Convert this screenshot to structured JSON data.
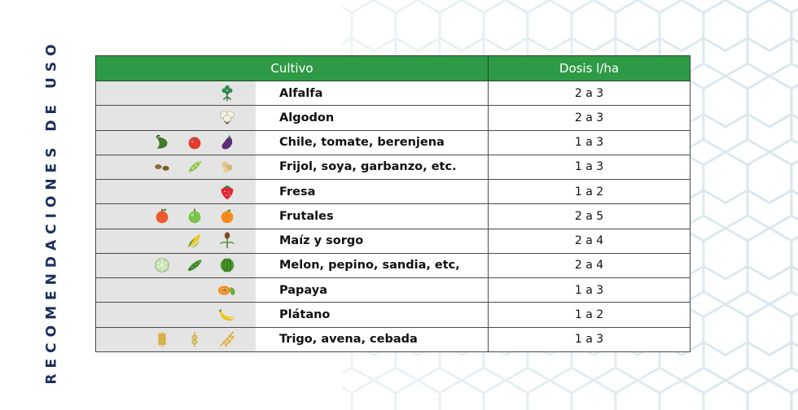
{
  "side_title": "RECOMENDACIONES DE USO",
  "table": {
    "headers": {
      "crop": "Cultivo",
      "dose": "Dosis l/ha"
    },
    "rows": [
      {
        "crop": "Alfalfa",
        "dose": "2 a 3",
        "icons": [
          "alfalfa-icon"
        ]
      },
      {
        "crop": "Algodon",
        "dose": "2 a 3",
        "icons": [
          "cotton-icon"
        ]
      },
      {
        "crop": "Chile, tomate, berenjena",
        "dose": "1 a 3",
        "icons": [
          "chili-pepper-icon",
          "tomato-icon",
          "eggplant-icon"
        ]
      },
      {
        "crop": "Frijol, soya, garbanzo, etc.",
        "dose": "1 a 3",
        "icons": [
          "bean-icon",
          "soybean-icon",
          "chickpea-icon"
        ]
      },
      {
        "crop": "Fresa",
        "dose": "1 a 2",
        "icons": [
          "strawberry-icon"
        ]
      },
      {
        "crop": "Frutales",
        "dose": "2 a 5",
        "icons": [
          "apple-icon",
          "green-apple-icon",
          "orange-icon"
        ]
      },
      {
        "crop": "Maíz y sorgo",
        "dose": "2 a 4",
        "icons": [
          "corn-icon",
          "sorghum-icon"
        ]
      },
      {
        "crop": "Melon, pepino, sandia, etc,",
        "dose": "2 a 4",
        "icons": [
          "melon-icon",
          "cucumber-icon",
          "watermelon-icon"
        ]
      },
      {
        "crop": "Papaya",
        "dose": "1 a 3",
        "icons": [
          "papaya-icon"
        ]
      },
      {
        "crop": "Plátano",
        "dose": "1 a 2",
        "icons": [
          "banana-icon"
        ]
      },
      {
        "crop": "Trigo, avena, cebada",
        "dose": "1 a 3",
        "icons": [
          "wheat-icon",
          "oat-icon",
          "barley-icon"
        ]
      }
    ]
  },
  "colors": {
    "header_green": "#2f9a46",
    "title_navy": "#1d2f5c",
    "icon_panel_gray": "#e4e4e4",
    "hex_pattern": "#dde8ee"
  }
}
